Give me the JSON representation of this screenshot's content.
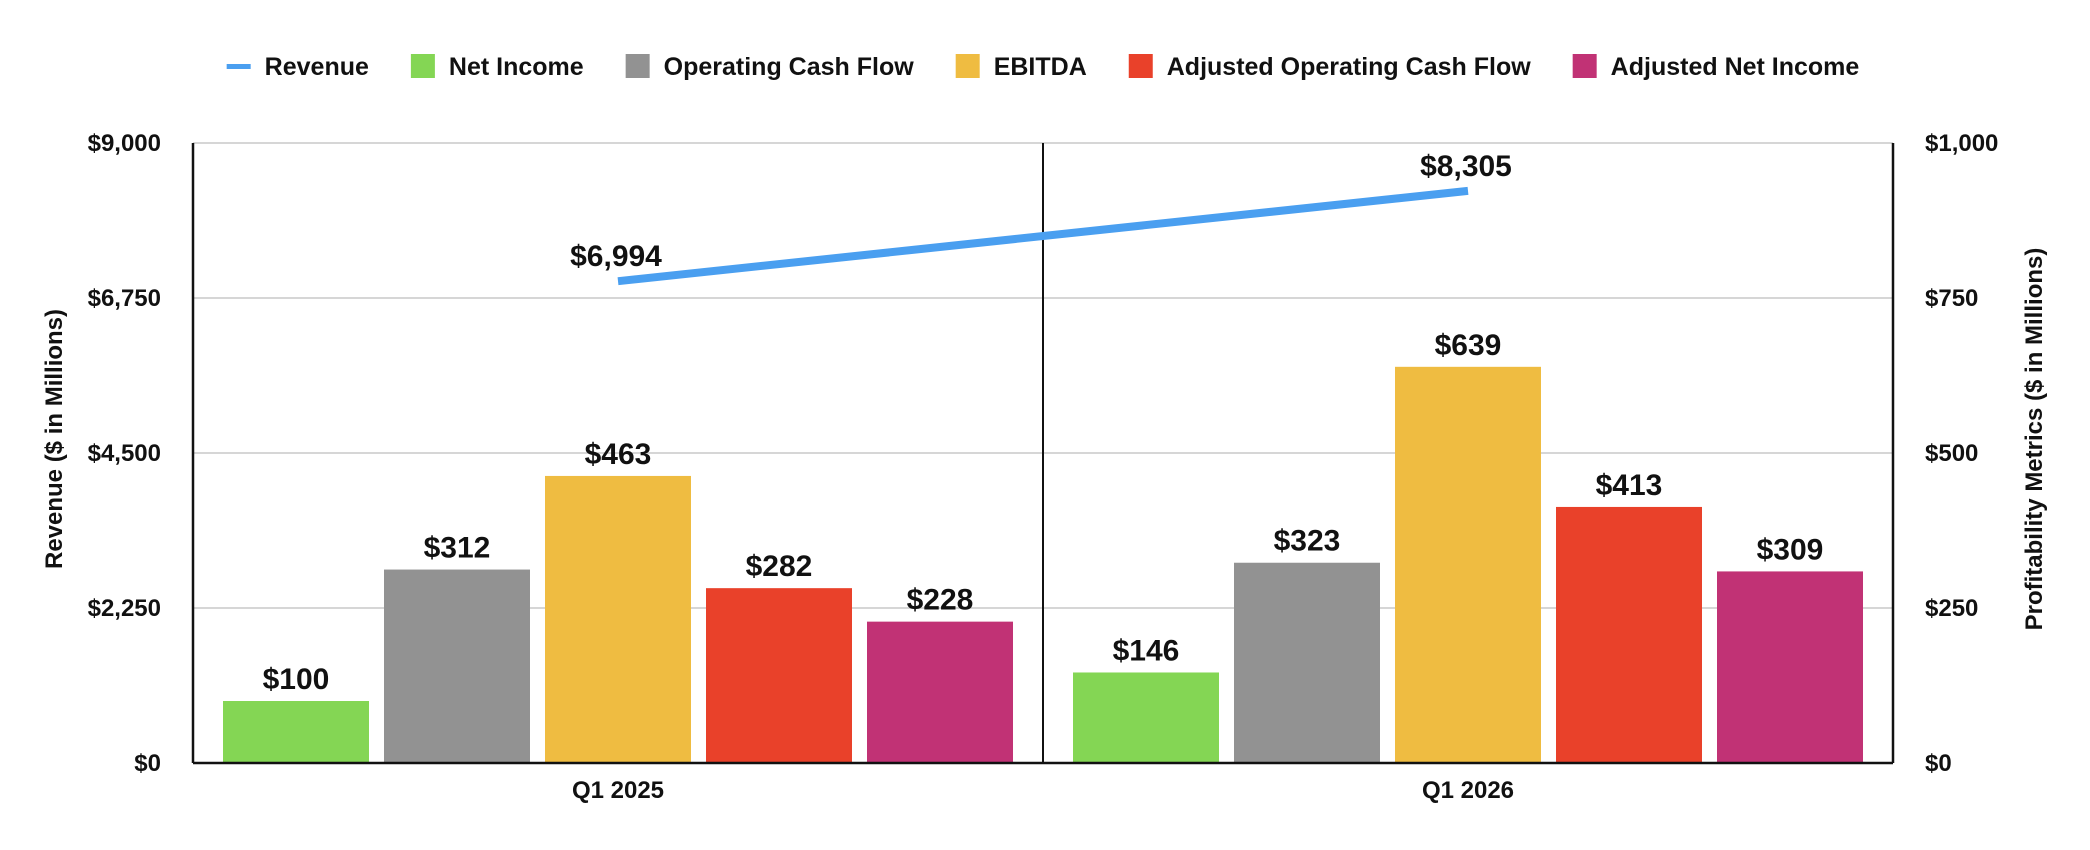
{
  "chart_data": {
    "type": "bar",
    "categories": [
      "Q1 2025",
      "Q1 2026"
    ],
    "legend_position": "top",
    "grid": true,
    "left_axis": {
      "label": "Revenue ($ in Millions)",
      "ylim": [
        0,
        9000
      ],
      "ticks": [
        0,
        2250,
        4500,
        6750,
        9000
      ],
      "tick_labels": [
        "$0",
        "$2,250",
        "$4,500",
        "$6,750",
        "$9,000"
      ]
    },
    "right_axis": {
      "label": "Profitability Metrics ($ in Millions)",
      "ylim": [
        0,
        1000
      ],
      "ticks": [
        0,
        250,
        500,
        750,
        1000
      ],
      "tick_labels": [
        "$0",
        "$250",
        "$500",
        "$750",
        "$1,000"
      ]
    },
    "line_series": {
      "name": "Revenue",
      "type": "line",
      "axis": "left",
      "color": "#4a9ff0",
      "values": [
        6994,
        8305
      ],
      "labels": [
        "$6,994",
        "$8,305"
      ]
    },
    "series": [
      {
        "name": "Net Income",
        "axis": "right",
        "color": "#84d654",
        "values": [
          100,
          146
        ],
        "labels": [
          "$100",
          "$146"
        ]
      },
      {
        "name": "Operating Cash Flow",
        "axis": "right",
        "color": "#929292",
        "values": [
          312,
          323
        ],
        "labels": [
          "$312",
          "$323"
        ]
      },
      {
        "name": "EBITDA",
        "axis": "right",
        "color": "#efbc41",
        "values": [
          463,
          639
        ],
        "labels": [
          "$463",
          "$639"
        ]
      },
      {
        "name": "Adjusted Operating Cash Flow",
        "axis": "right",
        "color": "#e9412a",
        "values": [
          282,
          413
        ],
        "labels": [
          "$282",
          "$413"
        ]
      },
      {
        "name": "Adjusted Net Income",
        "axis": "right",
        "color": "#c13275",
        "values": [
          228,
          309
        ],
        "labels": [
          "$228",
          "$309"
        ]
      }
    ]
  }
}
